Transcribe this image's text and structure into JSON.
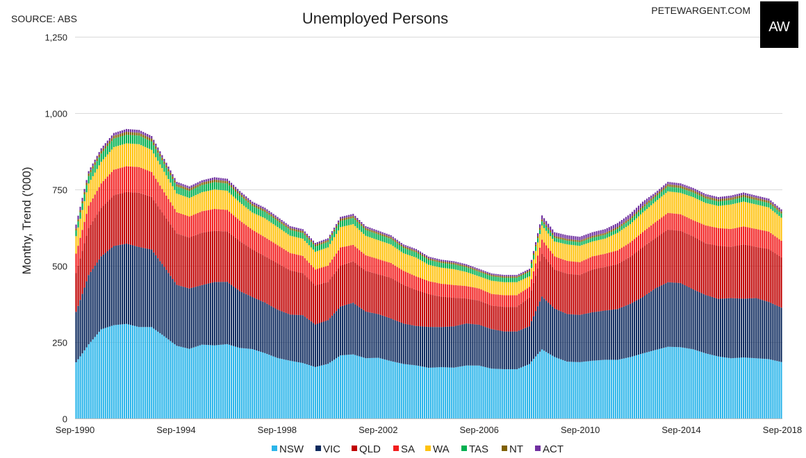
{
  "header": {
    "source": "SOURCE: ABS",
    "site": "PETEWARGENT.COM",
    "logo_text": "AW"
  },
  "colors": {
    "NSW": "#2bb5ea",
    "VIC": "#0d2a5e",
    "QLD": "#c00000",
    "SA": "#f21d1d",
    "WA": "#ffc20e",
    "TAS": "#00b050",
    "NT": "#7f6000",
    "ACT": "#7030a0"
  },
  "chart_data": {
    "type": "bar",
    "stacked": true,
    "title": "Unemployed Persons",
    "xlabel": "",
    "ylabel": "Monthy, Trend ('000)",
    "ylim": [
      0,
      1250
    ],
    "yticks": [
      0,
      250,
      500,
      750,
      1000,
      1250
    ],
    "ytick_labels": [
      "0",
      "250",
      "500",
      "750",
      "1,000",
      "1,250"
    ],
    "xtick_labels": [
      "Sep-1990",
      "Sep-1994",
      "Sep-1998",
      "Sep-2002",
      "Sep-2006",
      "Sep-2010",
      "Sep-2014",
      "Sep-2018"
    ],
    "grid": true,
    "legend_position": "bottom",
    "period": "Monthly, Sep-1990 to Sep-2018",
    "series_names": [
      "NSW",
      "VIC",
      "QLD",
      "SA",
      "WA",
      "TAS",
      "NT",
      "ACT"
    ],
    "x_keyframes": [
      "Sep-1990",
      "Mar-1991",
      "Sep-1991",
      "Mar-1992",
      "Sep-1992",
      "Mar-1993",
      "Sep-1993",
      "Mar-1994",
      "Sep-1994",
      "Mar-1995",
      "Sep-1995",
      "Mar-1996",
      "Sep-1996",
      "Mar-1997",
      "Sep-1997",
      "Mar-1998",
      "Sep-1998",
      "Mar-1999",
      "Sep-1999",
      "Mar-2000",
      "Sep-2000",
      "Mar-2001",
      "Sep-2001",
      "Mar-2002",
      "Sep-2002",
      "Mar-2003",
      "Sep-2003",
      "Mar-2004",
      "Sep-2004",
      "Mar-2005",
      "Sep-2005",
      "Mar-2006",
      "Sep-2006",
      "Mar-2007",
      "Sep-2007",
      "Mar-2008",
      "Sep-2008",
      "Mar-2009",
      "Sep-2009",
      "Mar-2010",
      "Sep-2010",
      "Mar-2011",
      "Sep-2011",
      "Mar-2012",
      "Sep-2012",
      "Mar-2013",
      "Sep-2013",
      "Mar-2014",
      "Sep-2014",
      "Mar-2015",
      "Sep-2015",
      "Mar-2016",
      "Sep-2016",
      "Mar-2017",
      "Sep-2017",
      "Mar-2018",
      "Sep-2018"
    ],
    "totals_keyframes": [
      635,
      810,
      885,
      935,
      948,
      945,
      925,
      850,
      775,
      760,
      780,
      790,
      785,
      745,
      710,
      690,
      660,
      630,
      620,
      575,
      590,
      660,
      670,
      630,
      615,
      600,
      570,
      555,
      530,
      520,
      515,
      505,
      490,
      475,
      470,
      470,
      490,
      665,
      610,
      600,
      595,
      610,
      620,
      640,
      670,
      710,
      740,
      775,
      770,
      755,
      735,
      725,
      730,
      740,
      730,
      720,
      685
    ],
    "share_keyframes": {
      "NSW": [
        0.29,
        0.3,
        0.33,
        0.33,
        0.33,
        0.32,
        0.33,
        0.32,
        0.31,
        0.3,
        0.31,
        0.3,
        0.31,
        0.31,
        0.32,
        0.31,
        0.3,
        0.3,
        0.29,
        0.29,
        0.3,
        0.31,
        0.31,
        0.31,
        0.32,
        0.31,
        0.31,
        0.31,
        0.31,
        0.32,
        0.32,
        0.34,
        0.35,
        0.34,
        0.34,
        0.34,
        0.36,
        0.34,
        0.33,
        0.31,
        0.31,
        0.31,
        0.31,
        0.3,
        0.3,
        0.3,
        0.3,
        0.3,
        0.3,
        0.3,
        0.29,
        0.28,
        0.27,
        0.27,
        0.27,
        0.27,
        0.27
      ],
      "VIC": [
        0.26,
        0.28,
        0.27,
        0.28,
        0.28,
        0.28,
        0.28,
        0.27,
        0.26,
        0.26,
        0.25,
        0.26,
        0.26,
        0.25,
        0.24,
        0.24,
        0.24,
        0.24,
        0.25,
        0.24,
        0.24,
        0.24,
        0.25,
        0.24,
        0.23,
        0.23,
        0.23,
        0.23,
        0.25,
        0.25,
        0.26,
        0.27,
        0.27,
        0.27,
        0.26,
        0.26,
        0.25,
        0.26,
        0.26,
        0.26,
        0.26,
        0.26,
        0.26,
        0.26,
        0.26,
        0.26,
        0.27,
        0.27,
        0.27,
        0.26,
        0.26,
        0.26,
        0.27,
        0.26,
        0.27,
        0.26,
        0.26
      ],
      "QLD": [
        0.2,
        0.19,
        0.18,
        0.18,
        0.18,
        0.19,
        0.19,
        0.2,
        0.22,
        0.22,
        0.22,
        0.21,
        0.21,
        0.22,
        0.22,
        0.22,
        0.23,
        0.23,
        0.22,
        0.22,
        0.21,
        0.2,
        0.2,
        0.21,
        0.21,
        0.22,
        0.22,
        0.21,
        0.2,
        0.19,
        0.18,
        0.16,
        0.16,
        0.16,
        0.17,
        0.17,
        0.19,
        0.21,
        0.21,
        0.22,
        0.22,
        0.23,
        0.23,
        0.23,
        0.23,
        0.23,
        0.22,
        0.22,
        0.22,
        0.23,
        0.23,
        0.24,
        0.23,
        0.24,
        0.23,
        0.24,
        0.24
      ],
      "SA": [
        0.1,
        0.09,
        0.09,
        0.09,
        0.09,
        0.09,
        0.09,
        0.09,
        0.09,
        0.09,
        0.09,
        0.09,
        0.09,
        0.09,
        0.09,
        0.09,
        0.09,
        0.09,
        0.09,
        0.09,
        0.09,
        0.09,
        0.08,
        0.08,
        0.08,
        0.08,
        0.08,
        0.08,
        0.08,
        0.08,
        0.08,
        0.08,
        0.08,
        0.08,
        0.08,
        0.08,
        0.07,
        0.07,
        0.07,
        0.07,
        0.07,
        0.07,
        0.07,
        0.07,
        0.07,
        0.07,
        0.07,
        0.07,
        0.07,
        0.07,
        0.08,
        0.08,
        0.08,
        0.08,
        0.08,
        0.08,
        0.08
      ],
      "WA": [
        0.09,
        0.09,
        0.08,
        0.08,
        0.08,
        0.08,
        0.08,
        0.08,
        0.08,
        0.08,
        0.08,
        0.08,
        0.08,
        0.08,
        0.08,
        0.09,
        0.09,
        0.09,
        0.09,
        0.1,
        0.1,
        0.1,
        0.1,
        0.1,
        0.1,
        0.1,
        0.1,
        0.11,
        0.1,
        0.1,
        0.1,
        0.09,
        0.08,
        0.09,
        0.09,
        0.09,
        0.07,
        0.07,
        0.08,
        0.09,
        0.09,
        0.08,
        0.08,
        0.09,
        0.09,
        0.09,
        0.09,
        0.09,
        0.09,
        0.1,
        0.1,
        0.1,
        0.11,
        0.11,
        0.11,
        0.11,
        0.11
      ],
      "TAS": [
        0.03,
        0.03,
        0.03,
        0.03,
        0.03,
        0.03,
        0.03,
        0.03,
        0.03,
        0.03,
        0.03,
        0.03,
        0.03,
        0.03,
        0.03,
        0.03,
        0.03,
        0.03,
        0.03,
        0.03,
        0.03,
        0.03,
        0.03,
        0.03,
        0.03,
        0.03,
        0.03,
        0.03,
        0.03,
        0.03,
        0.03,
        0.03,
        0.03,
        0.03,
        0.03,
        0.03,
        0.03,
        0.02,
        0.02,
        0.02,
        0.02,
        0.02,
        0.02,
        0.02,
        0.02,
        0.02,
        0.02,
        0.02,
        0.02,
        0.02,
        0.02,
        0.02,
        0.02,
        0.02,
        0.02,
        0.02,
        0.02
      ],
      "NT": [
        0.01,
        0.01,
        0.01,
        0.01,
        0.01,
        0.01,
        0.01,
        0.01,
        0.01,
        0.01,
        0.01,
        0.01,
        0.01,
        0.01,
        0.01,
        0.01,
        0.01,
        0.01,
        0.01,
        0.01,
        0.01,
        0.01,
        0.01,
        0.01,
        0.01,
        0.01,
        0.01,
        0.01,
        0.01,
        0.01,
        0.01,
        0.01,
        0.01,
        0.01,
        0.01,
        0.01,
        0.01,
        0.01,
        0.01,
        0.01,
        0.01,
        0.01,
        0.01,
        0.01,
        0.01,
        0.01,
        0.01,
        0.01,
        0.01,
        0.01,
        0.01,
        0.01,
        0.01,
        0.01,
        0.01,
        0.01,
        0.01
      ],
      "ACT": [
        0.02,
        0.01,
        0.01,
        0.01,
        0.01,
        0.01,
        0.01,
        0.01,
        0.01,
        0.01,
        0.01,
        0.01,
        0.01,
        0.01,
        0.01,
        0.01,
        0.01,
        0.01,
        0.01,
        0.01,
        0.01,
        0.01,
        0.01,
        0.01,
        0.01,
        0.01,
        0.01,
        0.01,
        0.01,
        0.01,
        0.01,
        0.01,
        0.01,
        0.01,
        0.01,
        0.01,
        0.01,
        0.02,
        0.02,
        0.02,
        0.02,
        0.02,
        0.02,
        0.02,
        0.02,
        0.02,
        0.01,
        0.01,
        0.01,
        0.01,
        0.01,
        0.01,
        0.01,
        0.01,
        0.01,
        0.01,
        0.01
      ]
    }
  }
}
